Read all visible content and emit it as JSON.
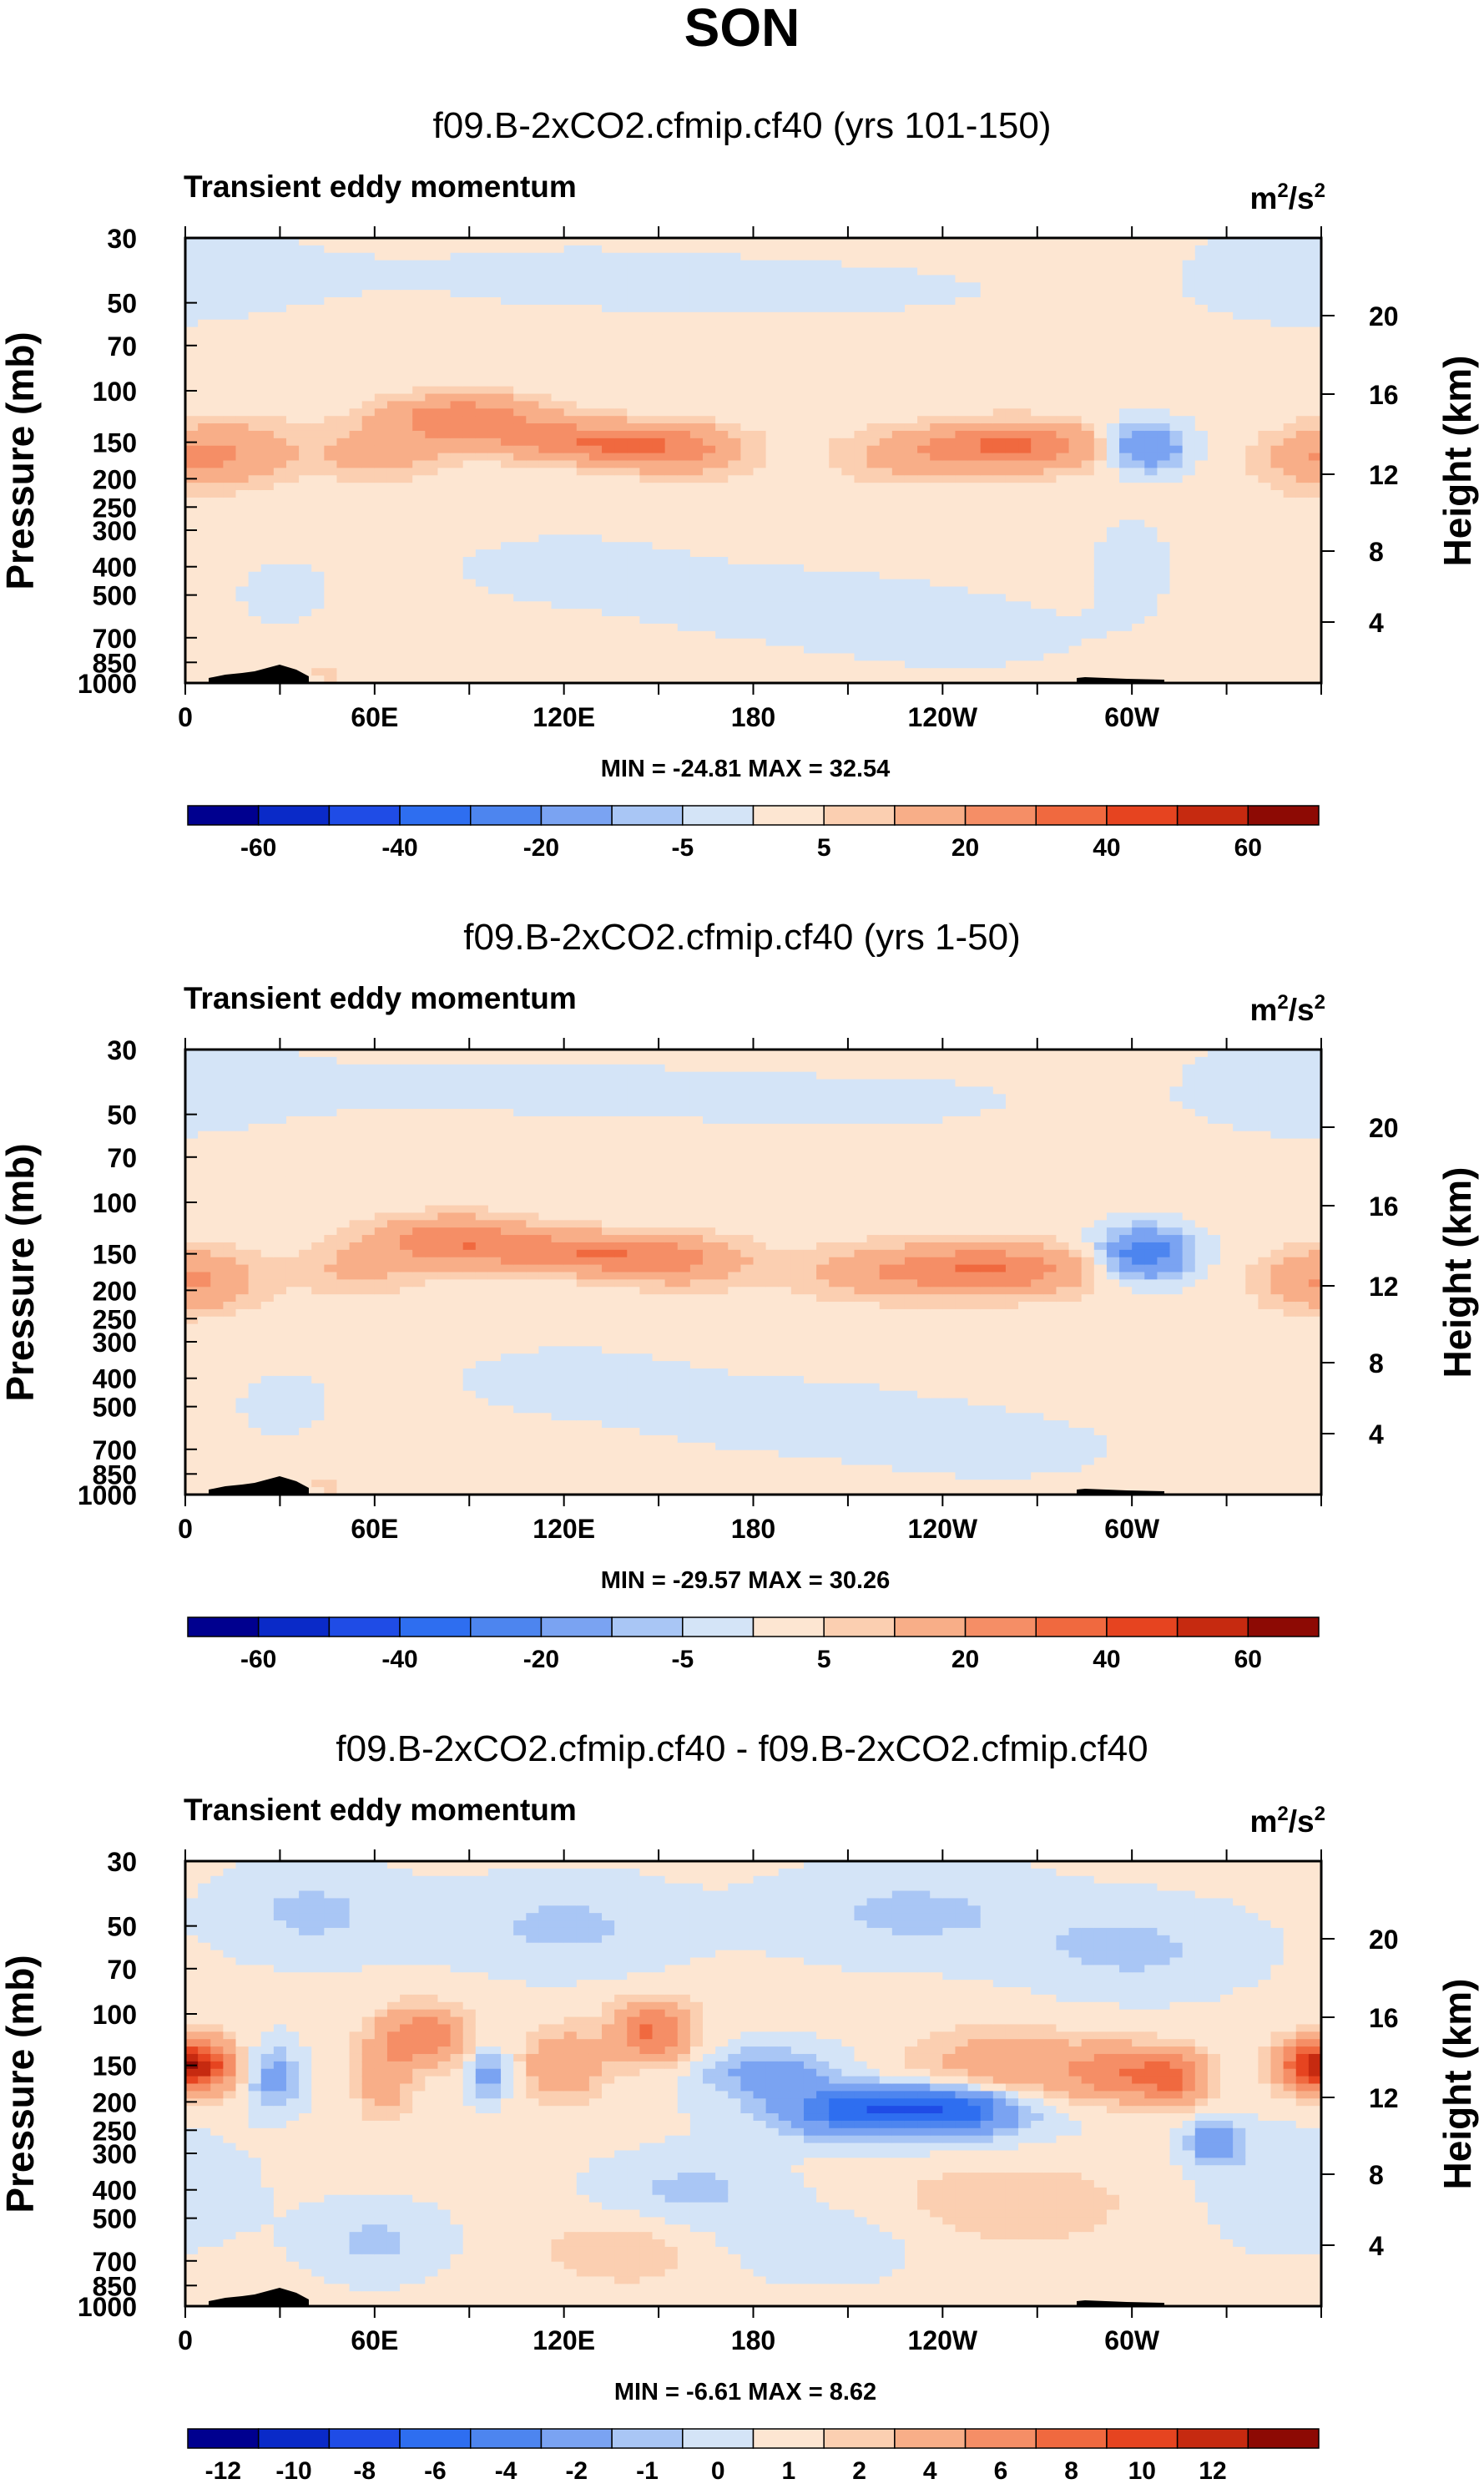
{
  "title": "SON",
  "chart_data": [
    {
      "type": "heatmap",
      "title": "f09.B-2xCO2.cfmip.cf40 (yrs 101-150)",
      "subtitle_left": "Transient eddy momentum",
      "units_base": "m",
      "units_exp1": "2",
      "units_mid": "/s",
      "units_exp2": "2",
      "ylabel": "Pressure (mb)",
      "ylabel_right": "Height (km)",
      "xlim": [
        0,
        360
      ],
      "x_ticks": [
        {
          "lon": 0,
          "label": "0"
        },
        {
          "lon": 60,
          "label": "60E"
        },
        {
          "lon": 120,
          "label": "120E"
        },
        {
          "lon": 180,
          "label": "180"
        },
        {
          "lon": 240,
          "label": "120W"
        },
        {
          "lon": 300,
          "label": "60W"
        }
      ],
      "pressure_ticks": [
        "30",
        "50",
        "70",
        "100",
        "150",
        "200",
        "250",
        "300",
        "400",
        "500",
        "700",
        "850",
        "1000"
      ],
      "height_ticks": [
        "20",
        "16",
        "12",
        "8",
        "4"
      ],
      "min_max": "MIN = -24.81   MAX =  32.54",
      "colorbar_labels": [
        "-60",
        "-40",
        "-20",
        "-5",
        "5",
        "20",
        "40",
        "60"
      ],
      "colorbar_colors": [
        "#00008f",
        "#0a2ac8",
        "#1f4ce6",
        "#2e6ef0",
        "#4d85ef",
        "#7aa3f2",
        "#a9c6f5",
        "#d4e4f7",
        "#fde6d2",
        "#fbcfb1",
        "#f8ae88",
        "#f58e66",
        "#f0693f",
        "#e64420",
        "#c62a10",
        "#8d0a04"
      ],
      "features": [
        {
          "lon": 15,
          "p": 160,
          "amp": 13,
          "wl": 16,
          "wp": 0.17
        },
        {
          "lon": 360,
          "p": 175,
          "amp": 12,
          "wl": 14,
          "wp": 0.17
        },
        {
          "lon": 88,
          "p": 125,
          "amp": 27,
          "wl": 18,
          "wp": 0.13
        },
        {
          "lon": 132,
          "p": 150,
          "amp": 29,
          "wl": 22,
          "wp": 0.11
        },
        {
          "lon": 62,
          "p": 165,
          "amp": 13,
          "wl": 14,
          "wp": 0.14
        },
        {
          "lon": 158,
          "p": 165,
          "amp": 14,
          "wl": 14,
          "wp": 0.14
        },
        {
          "lon": 262,
          "p": 155,
          "amp": 31,
          "wl": 20,
          "wp": 0.13
        },
        {
          "lon": 226,
          "p": 170,
          "amp": 9,
          "wl": 16,
          "wp": 0.15
        },
        {
          "lon": 304,
          "p": 155,
          "amp": -24,
          "wl": 9,
          "wp": 0.13
        },
        {
          "lon": 300,
          "p": 400,
          "amp": -3,
          "wl": 10,
          "wp": 0.3
        },
        {
          "lon": 200,
          "p": 550,
          "amp": -2.5,
          "wl": 40,
          "wp": 0.25
        },
        {
          "lon": 250,
          "p": 700,
          "amp": -2.5,
          "wl": 30,
          "wp": 0.2
        },
        {
          "lon": 120,
          "p": 400,
          "amp": -2,
          "wl": 40,
          "wp": 0.3
        },
        {
          "lon": 30,
          "p": 500,
          "amp": -2,
          "wl": 15,
          "wp": 0.3
        },
        {
          "lon": 200,
          "p": 45,
          "amp": -2.5,
          "wl": 50,
          "wp": 0.18
        },
        {
          "lon": 120,
          "p": 40,
          "amp": -2.5,
          "wl": 40,
          "wp": 0.18
        },
        {
          "lon": 20,
          "p": 40,
          "amp": -2.5,
          "wl": 30,
          "wp": 0.2
        },
        {
          "lon": 350,
          "p": 40,
          "amp": -3,
          "wl": 25,
          "wp": 0.3
        },
        {
          "lon": 45,
          "p": 930,
          "amp": 8,
          "wl": 3,
          "wp": 0.05
        }
      ]
    },
    {
      "type": "heatmap",
      "title": "f09.B-2xCO2.cfmip.cf40 (yrs 1-50)",
      "subtitle_left": "Transient eddy momentum",
      "units_base": "m",
      "units_exp1": "2",
      "units_mid": "/s",
      "units_exp2": "2",
      "ylabel": "Pressure (mb)",
      "ylabel_right": "Height (km)",
      "xlim": [
        0,
        360
      ],
      "x_ticks": [
        {
          "lon": 0,
          "label": "0"
        },
        {
          "lon": 60,
          "label": "60E"
        },
        {
          "lon": 120,
          "label": "120E"
        },
        {
          "lon": 180,
          "label": "180"
        },
        {
          "lon": 240,
          "label": "120W"
        },
        {
          "lon": 300,
          "label": "60W"
        }
      ],
      "pressure_ticks": [
        "30",
        "50",
        "70",
        "100",
        "150",
        "200",
        "250",
        "300",
        "400",
        "500",
        "700",
        "850",
        "1000"
      ],
      "height_ticks": [
        "20",
        "16",
        "12",
        "8",
        "4"
      ],
      "min_max": "MIN = -29.57   MAX =  30.26",
      "colorbar_labels": [
        "-60",
        "-40",
        "-20",
        "-5",
        "5",
        "20",
        "40",
        "60"
      ],
      "colorbar_colors": [
        "#00008f",
        "#0a2ac8",
        "#1f4ce6",
        "#2e6ef0",
        "#4d85ef",
        "#7aa3f2",
        "#a9c6f5",
        "#d4e4f7",
        "#fde6d2",
        "#fbcfb1",
        "#f8ae88",
        "#f58e66",
        "#f0693f",
        "#e64420",
        "#c62a10",
        "#8d0a04"
      ],
      "features": [
        {
          "lon": 5,
          "p": 185,
          "amp": 9,
          "wl": 14,
          "wp": 0.17
        },
        {
          "lon": 360,
          "p": 185,
          "amp": 11,
          "wl": 14,
          "wp": 0.17
        },
        {
          "lon": 86,
          "p": 135,
          "amp": 26,
          "wl": 18,
          "wp": 0.13
        },
        {
          "lon": 130,
          "p": 150,
          "amp": 27,
          "wl": 22,
          "wp": 0.11
        },
        {
          "lon": 160,
          "p": 165,
          "amp": 12,
          "wl": 16,
          "wp": 0.14
        },
        {
          "lon": 55,
          "p": 170,
          "amp": 10,
          "wl": 14,
          "wp": 0.15
        },
        {
          "lon": 254,
          "p": 170,
          "amp": 29,
          "wl": 22,
          "wp": 0.14
        },
        {
          "lon": 215,
          "p": 175,
          "amp": 10,
          "wl": 16,
          "wp": 0.15
        },
        {
          "lon": 304,
          "p": 150,
          "amp": -29,
          "wl": 10,
          "wp": 0.14
        },
        {
          "lon": 200,
          "p": 550,
          "amp": -2.5,
          "wl": 40,
          "wp": 0.25
        },
        {
          "lon": 260,
          "p": 700,
          "amp": -2.5,
          "wl": 30,
          "wp": 0.2
        },
        {
          "lon": 120,
          "p": 400,
          "amp": -2,
          "wl": 40,
          "wp": 0.3
        },
        {
          "lon": 30,
          "p": 500,
          "amp": -2,
          "wl": 15,
          "wp": 0.3
        },
        {
          "lon": 210,
          "p": 45,
          "amp": -2.5,
          "wl": 50,
          "wp": 0.18
        },
        {
          "lon": 110,
          "p": 40,
          "amp": -2.5,
          "wl": 40,
          "wp": 0.18
        },
        {
          "lon": 20,
          "p": 40,
          "amp": -2.5,
          "wl": 30,
          "wp": 0.2
        },
        {
          "lon": 350,
          "p": 40,
          "amp": -3,
          "wl": 25,
          "wp": 0.3
        },
        {
          "lon": 45,
          "p": 930,
          "amp": 8,
          "wl": 3,
          "wp": 0.05
        }
      ]
    },
    {
      "type": "heatmap",
      "title": "f09.B-2xCO2.cfmip.cf40 - f09.B-2xCO2.cfmip.cf40",
      "subtitle_left": "Transient eddy momentum",
      "units_base": "m",
      "units_exp1": "2",
      "units_mid": "/s",
      "units_exp2": "2",
      "ylabel": "Pressure (mb)",
      "ylabel_right": "Height (km)",
      "xlim": [
        0,
        360
      ],
      "x_ticks": [
        {
          "lon": 0,
          "label": "0"
        },
        {
          "lon": 60,
          "label": "60E"
        },
        {
          "lon": 120,
          "label": "120E"
        },
        {
          "lon": 180,
          "label": "180"
        },
        {
          "lon": 240,
          "label": "120W"
        },
        {
          "lon": 300,
          "label": "60W"
        }
      ],
      "pressure_ticks": [
        "30",
        "50",
        "70",
        "100",
        "150",
        "200",
        "250",
        "300",
        "400",
        "500",
        "700",
        "850",
        "1000"
      ],
      "height_ticks": [
        "20",
        "16",
        "12",
        "8",
        "4"
      ],
      "min_max": "MIN =  -6.61   MAX =   8.62",
      "colorbar_labels": [
        "-12",
        "-10",
        "-8",
        "-6",
        "-4",
        "-2",
        "-1",
        "0",
        "1",
        "2",
        "4",
        "6",
        "8",
        "10",
        "12"
      ],
      "colorbar_colors": [
        "#00008f",
        "#0a2ac8",
        "#1f4ce6",
        "#2e6ef0",
        "#4d85ef",
        "#7aa3f2",
        "#a9c6f5",
        "#d4e4f7",
        "#fde6d2",
        "#fbcfb1",
        "#f8ae88",
        "#f58e66",
        "#f0693f",
        "#e64420",
        "#c62a10",
        "#8d0a04"
      ],
      "features": [
        {
          "lon": 5,
          "p": 150,
          "amp": 6,
          "wl": 8,
          "wp": 0.14
        },
        {
          "lon": 358,
          "p": 150,
          "amp": 7,
          "wl": 9,
          "wp": 0.14
        },
        {
          "lon": 28,
          "p": 165,
          "amp": -3,
          "wl": 6,
          "wp": 0.18
        },
        {
          "lon": 75,
          "p": 120,
          "amp": 5.5,
          "wl": 10,
          "wp": 0.16
        },
        {
          "lon": 63,
          "p": 170,
          "amp": 3,
          "wl": 6,
          "wp": 0.2
        },
        {
          "lon": 96,
          "p": 160,
          "amp": -3,
          "wl": 5,
          "wp": 0.14
        },
        {
          "lon": 120,
          "p": 150,
          "amp": 3.5,
          "wl": 9,
          "wp": 0.2
        },
        {
          "lon": 148,
          "p": 115,
          "amp": 6,
          "wl": 9,
          "wp": 0.16
        },
        {
          "lon": 185,
          "p": 160,
          "amp": -3,
          "wl": 15,
          "wp": 0.15
        },
        {
          "lon": 212,
          "p": 210,
          "amp": -5.5,
          "wl": 14,
          "wp": 0.12
        },
        {
          "lon": 243,
          "p": 210,
          "amp": -6.2,
          "wl": 14,
          "wp": 0.12
        },
        {
          "lon": 228,
          "p": 230,
          "amp": -2.5,
          "wl": 30,
          "wp": 0.15
        },
        {
          "lon": 260,
          "p": 150,
          "amp": 3,
          "wl": 20,
          "wp": 0.2
        },
        {
          "lon": 300,
          "p": 160,
          "amp": 5.5,
          "wl": 14,
          "wp": 0.15
        },
        {
          "lon": 314,
          "p": 170,
          "amp": 4,
          "wl": 6,
          "wp": 0.14
        },
        {
          "lon": 326,
          "p": 275,
          "amp": -3.5,
          "wl": 6,
          "wp": 0.12
        },
        {
          "lon": 160,
          "p": 400,
          "amp": -1.5,
          "wl": 20,
          "wp": 0.2
        },
        {
          "lon": 260,
          "p": 450,
          "amp": 1.5,
          "wl": 30,
          "wp": 0.25
        },
        {
          "lon": 60,
          "p": 600,
          "amp": -1.5,
          "wl": 15,
          "wp": 0.2
        },
        {
          "lon": 140,
          "p": 650,
          "amp": 1.5,
          "wl": 20,
          "wp": 0.2
        },
        {
          "lon": 200,
          "p": 600,
          "amp": -1.2,
          "wl": 25,
          "wp": 0.2
        },
        {
          "lon": 40,
          "p": 45,
          "amp": -1.5,
          "wl": 20,
          "wp": 0.25
        },
        {
          "lon": 120,
          "p": 50,
          "amp": -1.5,
          "wl": 25,
          "wp": 0.25
        },
        {
          "lon": 230,
          "p": 45,
          "amp": -1.5,
          "wl": 30,
          "wp": 0.25
        },
        {
          "lon": 300,
          "p": 60,
          "amp": -1.5,
          "wl": 25,
          "wp": 0.25
        },
        {
          "lon": 350,
          "p": 400,
          "amp": -1.2,
          "wl": 20,
          "wp": 0.3
        }
      ]
    }
  ]
}
